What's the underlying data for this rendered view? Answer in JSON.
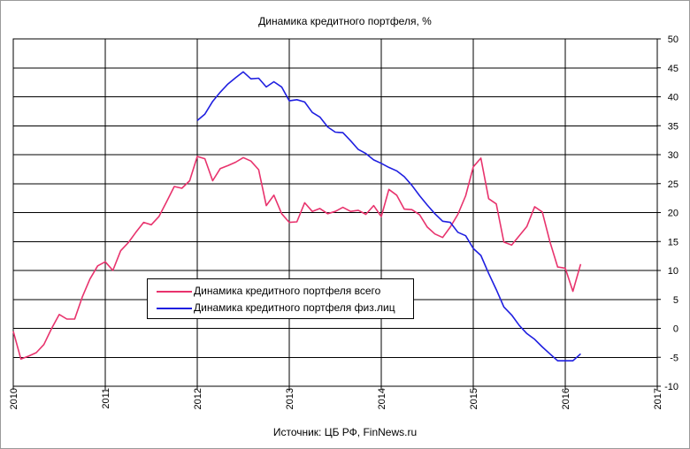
{
  "chart_data": {
    "type": "line",
    "title": "Динамика кредитного портфеля, %",
    "source": "Источник: ЦБ РФ, FinNews.ru",
    "x_ticks": [
      "2010",
      "2011",
      "2012",
      "2013",
      "2014",
      "2015",
      "2016",
      "2017"
    ],
    "xlim": [
      2010,
      2017
    ],
    "y_ticks": [
      "50",
      "45",
      "40",
      "35",
      "30",
      "25",
      "20",
      "15",
      "10",
      "5",
      "0",
      "-5",
      "-10"
    ],
    "ylim": [
      -10,
      50
    ],
    "grid": true,
    "legend_position": "lower-left",
    "series": [
      {
        "name": "Динамика кредитного портфеля всего",
        "color": "#e8336d",
        "x": [
          2010.0,
          2010.083,
          2010.167,
          2010.25,
          2010.333,
          2010.417,
          2010.5,
          2010.583,
          2010.667,
          2010.75,
          2010.833,
          2010.917,
          2011.0,
          2011.083,
          2011.167,
          2011.25,
          2011.333,
          2011.417,
          2011.5,
          2011.583,
          2011.667,
          2011.75,
          2011.833,
          2011.917,
          2012.0,
          2012.083,
          2012.167,
          2012.25,
          2012.333,
          2012.417,
          2012.5,
          2012.583,
          2012.667,
          2012.75,
          2012.833,
          2012.917,
          2013.0,
          2013.083,
          2013.167,
          2013.25,
          2013.333,
          2013.417,
          2013.5,
          2013.583,
          2013.667,
          2013.75,
          2013.833,
          2013.917,
          2014.0,
          2014.083,
          2014.167,
          2014.25,
          2014.333,
          2014.417,
          2014.5,
          2014.583,
          2014.667,
          2014.75,
          2014.833,
          2014.917,
          2015.0,
          2015.083,
          2015.167,
          2015.25,
          2015.333,
          2015.417,
          2015.5,
          2015.583,
          2015.667,
          2015.75,
          2015.833,
          2015.917,
          2016.0,
          2016.083,
          2016.167
        ],
        "values": [
          -0.5,
          -5.3,
          -4.8,
          -4.2,
          -2.8,
          0.0,
          2.4,
          1.6,
          1.6,
          5.4,
          8.5,
          10.8,
          11.5,
          10.0,
          13.4,
          14.8,
          16.6,
          18.3,
          17.9,
          19.3,
          21.9,
          24.5,
          24.2,
          25.5,
          29.7,
          29.3,
          25.5,
          27.6,
          28.1,
          28.7,
          29.5,
          28.9,
          27.4,
          21.2,
          23.0,
          19.8,
          18.3,
          18.4,
          21.7,
          20.2,
          20.7,
          19.8,
          20.2,
          20.9,
          20.2,
          20.4,
          19.7,
          21.2,
          19.3,
          24.0,
          23.0,
          20.6,
          20.5,
          19.6,
          17.5,
          16.3,
          15.7,
          17.5,
          19.7,
          22.9,
          27.9,
          29.4,
          22.4,
          21.5,
          14.9,
          14.4,
          16.0,
          17.6,
          21.0,
          20.1,
          15.0,
          10.6,
          10.4,
          6.4,
          11.1
        ]
      },
      {
        "name": "Динамика кредитного портфеля физ.лиц",
        "color": "#1f1fe0",
        "x": [
          2012.0,
          2012.083,
          2012.167,
          2012.25,
          2012.333,
          2012.417,
          2012.5,
          2012.583,
          2012.667,
          2012.75,
          2012.833,
          2012.917,
          2013.0,
          2013.083,
          2013.167,
          2013.25,
          2013.333,
          2013.417,
          2013.5,
          2013.583,
          2013.667,
          2013.75,
          2013.833,
          2013.917,
          2014.0,
          2014.083,
          2014.167,
          2014.25,
          2014.333,
          2014.417,
          2014.5,
          2014.583,
          2014.667,
          2014.75,
          2014.833,
          2014.917,
          2015.0,
          2015.083,
          2015.167,
          2015.25,
          2015.333,
          2015.417,
          2015.5,
          2015.583,
          2015.667,
          2015.75,
          2015.833,
          2015.917,
          2016.0,
          2016.083,
          2016.167
        ],
        "values": [
          35.9,
          37.0,
          39.2,
          40.8,
          42.2,
          43.3,
          44.3,
          43.1,
          43.2,
          41.7,
          42.6,
          41.7,
          39.3,
          39.5,
          39.1,
          37.3,
          36.5,
          34.8,
          33.9,
          33.8,
          32.4,
          30.9,
          30.2,
          29.1,
          28.5,
          27.8,
          27.2,
          26.2,
          24.7,
          22.9,
          21.3,
          19.8,
          18.5,
          18.3,
          16.6,
          16.0,
          13.8,
          12.6,
          9.5,
          6.7,
          3.7,
          2.3,
          0.5,
          -0.9,
          -1.9,
          -3.2,
          -4.4,
          -5.6,
          -5.6,
          -5.6,
          -4.4
        ]
      }
    ]
  }
}
